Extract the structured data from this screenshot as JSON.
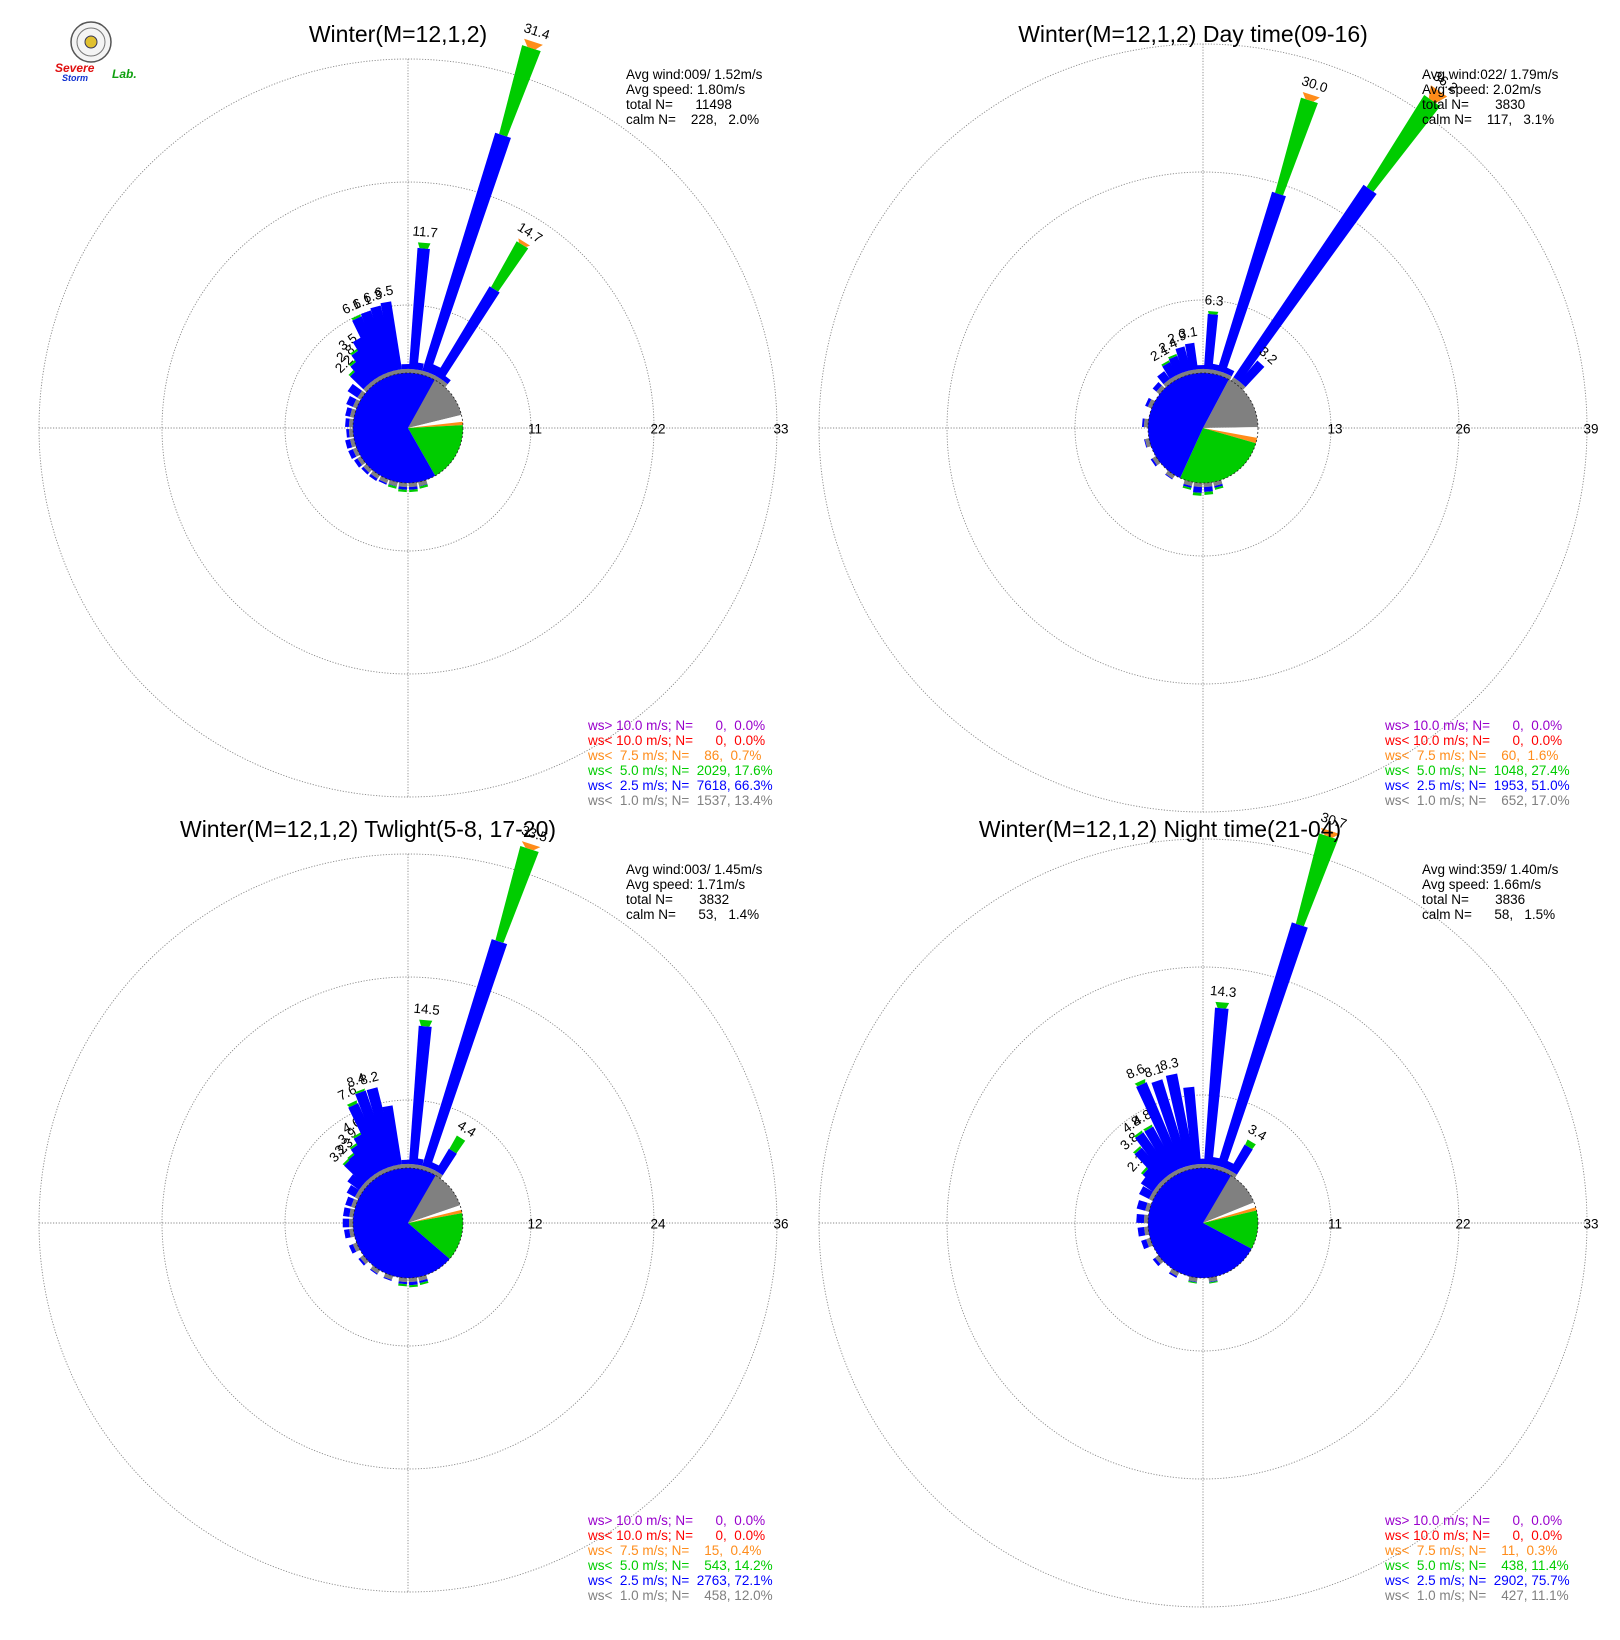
{
  "logo": {
    "line1": "Severe",
    "line2": "Storm",
    "line3": "Lab."
  },
  "colors": {
    "gt10": "#9900cc",
    "lt10": "#ff0000",
    "lt7_5": "#ff8c1a",
    "lt5": "#00cc00",
    "lt2_5": "#0000ff",
    "lt1": "#808080",
    "calm": "#ffffff",
    "grid": "#888888"
  },
  "chart_data": [
    {
      "type": "wind-rose",
      "title": "Winter(M=12,1,2)",
      "stats": [
        "Avg wind:009/ 1.52m/s",
        "Avg speed: 1.80m/s",
        "total N=      11498",
        "calm N=    228,   2.0%"
      ],
      "rings": [
        11,
        22,
        33
      ],
      "core": {
        "lt1": 13.4,
        "lt2_5": 66.3,
        "lt5": 17.6,
        "lt7_5": 0.7,
        "lt10": 0.0,
        "gt10": 0.0,
        "calm": 2.0
      },
      "bars": [
        {
          "dir": 315,
          "total": 2.2,
          "green": 0.2,
          "label": "2.2"
        },
        {
          "dir": 320,
          "total": 2.8,
          "green": 0.2,
          "label": "2.8"
        },
        {
          "dir": 325,
          "total": 3.5,
          "green": 0.2,
          "label": "3.5"
        },
        {
          "dir": 330,
          "total": 4.2,
          "green": 0,
          "label": ""
        },
        {
          "dir": 335,
          "total": 6.1,
          "green": 0.2,
          "label": "6.1"
        },
        {
          "dir": 340,
          "total": 6.1,
          "green": 0,
          "label": "6.1"
        },
        {
          "dir": 345,
          "total": 6.3,
          "green": 0,
          "label": "6.3"
        },
        {
          "dir": 350,
          "total": 6.5,
          "green": 0,
          "label": "6.5"
        },
        {
          "dir": 358,
          "total": 0.8,
          "green": 0,
          "label": ""
        },
        {
          "dir": 5,
          "total": 11.7,
          "green": 0.5,
          "label": "11.7"
        },
        {
          "dir": 10,
          "total": 1.0,
          "green": 0,
          "label": ""
        },
        {
          "dir": 18,
          "total": 31.4,
          "green": 8.2,
          "orange": 0.6,
          "label": "31.4"
        },
        {
          "dir": 25,
          "total": 1.2,
          "green": 0,
          "label": ""
        },
        {
          "dir": 32,
          "total": 14.7,
          "green": 4.7,
          "orange": 0.3,
          "label": "14.7"
        },
        {
          "dir": 38,
          "total": 0.8,
          "green": 0,
          "label": ""
        },
        {
          "dir": 165,
          "total": 0.6,
          "green": 0.2,
          "label": ""
        },
        {
          "dir": 175,
          "total": 0.8,
          "green": 0.2,
          "label": ""
        },
        {
          "dir": 185,
          "total": 0.8,
          "green": 0.2,
          "label": ""
        },
        {
          "dir": 195,
          "total": 0.6,
          "green": 0.2,
          "label": ""
        },
        {
          "dir": 205,
          "total": 0.5,
          "green": 0,
          "label": ""
        },
        {
          "dir": 215,
          "total": 0.6,
          "green": 0,
          "label": ""
        },
        {
          "dir": 225,
          "total": 0.6,
          "green": 0,
          "label": ""
        },
        {
          "dir": 235,
          "total": 0.7,
          "green": 0,
          "label": ""
        },
        {
          "dir": 245,
          "total": 0.8,
          "green": 0,
          "label": ""
        },
        {
          "dir": 255,
          "total": 0.8,
          "green": 0,
          "label": ""
        },
        {
          "dir": 265,
          "total": 0.6,
          "green": 0,
          "label": ""
        },
        {
          "dir": 275,
          "total": 0.7,
          "green": 0,
          "label": ""
        },
        {
          "dir": 285,
          "total": 0.8,
          "green": 0,
          "label": ""
        },
        {
          "dir": 295,
          "total": 1.0,
          "green": 0,
          "label": ""
        },
        {
          "dir": 305,
          "total": 1.4,
          "green": 0,
          "label": ""
        }
      ],
      "legend": [
        {
          "text": "ws> 10.0 m/s; N=      0,  0.0%",
          "key": "gt10"
        },
        {
          "text": "ws< 10.0 m/s; N=      0,  0.0%",
          "key": "lt10"
        },
        {
          "text": "ws<  7.5 m/s; N=    86,  0.7%",
          "key": "lt7_5"
        },
        {
          "text": "ws<  5.0 m/s; N=  2029, 17.6%",
          "key": "lt5"
        },
        {
          "text": "ws<  2.5 m/s; N=  7618, 66.3%",
          "key": "lt2_5"
        },
        {
          "text": "ws<  1.0 m/s; N=  1537, 13.4%",
          "key": "lt1"
        }
      ]
    },
    {
      "type": "wind-rose",
      "title": "Winter(M=12,1,2) Day time(09-16)",
      "stats": [
        "Avg wind:022/ 1.79m/s",
        "Avg speed: 2.02m/s",
        "total N=       3830",
        "calm N=    117,   3.1%"
      ],
      "rings": [
        13,
        26,
        39
      ],
      "core": {
        "lt1": 17.0,
        "lt2_5": 51.0,
        "lt5": 27.4,
        "lt7_5": 1.6,
        "lt10": 0.0,
        "gt10": 0.0,
        "calm": 3.1
      },
      "bars": [
        {
          "dir": 330,
          "total": 2.1,
          "green": 0.2,
          "label": "2.1"
        },
        {
          "dir": 337,
          "total": 2.4,
          "green": 0.2,
          "label": "2.4"
        },
        {
          "dir": 344,
          "total": 2.9,
          "green": 0,
          "label": "2.9"
        },
        {
          "dir": 351,
          "total": 3.1,
          "green": 0,
          "label": "3.1"
        },
        {
          "dir": 358,
          "total": 0.8,
          "green": 0,
          "label": ""
        },
        {
          "dir": 5,
          "total": 6.3,
          "green": 0.3,
          "label": "6.3"
        },
        {
          "dir": 12,
          "total": 1.0,
          "green": 0,
          "label": ""
        },
        {
          "dir": 18,
          "total": 30.0,
          "green": 10.0,
          "orange": 0.6,
          "label": "30.0"
        },
        {
          "dir": 25,
          "total": 1.0,
          "green": 0,
          "label": ""
        },
        {
          "dir": 35,
          "total": 36.2,
          "green": 11.0,
          "orange": 1.2,
          "label": "36.2"
        },
        {
          "dir": 42,
          "total": 3.2,
          "green": 0,
          "label": "3.2"
        },
        {
          "dir": 165,
          "total": 0.8,
          "green": 0.2,
          "label": ""
        },
        {
          "dir": 175,
          "total": 1.2,
          "green": 0.3,
          "label": ""
        },
        {
          "dir": 185,
          "total": 1.3,
          "green": 0.3,
          "label": ""
        },
        {
          "dir": 195,
          "total": 0.8,
          "green": 0.2,
          "label": ""
        },
        {
          "dir": 215,
          "total": 0.5,
          "green": 0,
          "label": ""
        },
        {
          "dir": 235,
          "total": 0.6,
          "green": 0,
          "label": ""
        },
        {
          "dir": 255,
          "total": 0.5,
          "green": 0,
          "label": ""
        },
        {
          "dir": 275,
          "total": 0.6,
          "green": 0,
          "label": ""
        },
        {
          "dir": 295,
          "total": 0.7,
          "green": 0,
          "label": ""
        },
        {
          "dir": 312,
          "total": 0.9,
          "green": 0,
          "label": ""
        },
        {
          "dir": 322,
          "total": 1.4,
          "green": 0,
          "label": ""
        }
      ],
      "legend": [
        {
          "text": "ws> 10.0 m/s; N=      0,  0.0%",
          "key": "gt10"
        },
        {
          "text": "ws< 10.0 m/s; N=      0,  0.0%",
          "key": "lt10"
        },
        {
          "text": "ws<  7.5 m/s; N=    60,  1.6%",
          "key": "lt7_5"
        },
        {
          "text": "ws<  5.0 m/s; N=  1048, 27.4%",
          "key": "lt5"
        },
        {
          "text": "ws<  2.5 m/s; N=  1953, 51.0%",
          "key": "lt2_5"
        },
        {
          "text": "ws<  1.0 m/s; N=    652, 17.0%",
          "key": "lt1"
        }
      ]
    },
    {
      "type": "wind-rose",
      "title": "Winter(M=12,1,2) Twlight(5-8, 17-20)",
      "stats": [
        "Avg wind:003/ 1.45m/s",
        "Avg speed: 1.71m/s",
        "total N=       3832",
        "calm N=      53,   1.4%"
      ],
      "rings": [
        12,
        24,
        36
      ],
      "core": {
        "lt1": 12.0,
        "lt2_5": 72.1,
        "lt5": 14.2,
        "lt7_5": 0.4,
        "lt10": 0.0,
        "gt10": 0.0,
        "calm": 1.4
      },
      "bars": [
        {
          "dir": 315,
          "total": 3.2,
          "green": 0.2,
          "label": "3.2"
        },
        {
          "dir": 320,
          "total": 3.3,
          "green": 0.2,
          "label": "3.3"
        },
        {
          "dir": 325,
          "total": 3.9,
          "green": 0.2,
          "label": "3.9"
        },
        {
          "dir": 330,
          "total": 4.6,
          "green": 0.2,
          "label": "4.6"
        },
        {
          "dir": 335,
          "total": 7.6,
          "green": 0.3,
          "label": "7.6"
        },
        {
          "dir": 340,
          "total": 8.4,
          "green": 0.2,
          "label": "8.4"
        },
        {
          "dir": 345,
          "total": 8.2,
          "green": 0,
          "label": "8.2"
        },
        {
          "dir": 350,
          "total": 6.2,
          "green": 0,
          "label": ""
        },
        {
          "dir": 358,
          "total": 0.8,
          "green": 0,
          "label": ""
        },
        {
          "dir": 5,
          "total": 14.5,
          "green": 0.6,
          "label": "14.5"
        },
        {
          "dir": 10,
          "total": 1.0,
          "green": 0,
          "label": ""
        },
        {
          "dir": 18,
          "total": 33.5,
          "green": 9.5,
          "orange": 0.5,
          "label": "33.5"
        },
        {
          "dir": 25,
          "total": 1.0,
          "green": 0,
          "label": ""
        },
        {
          "dir": 32,
          "total": 4.4,
          "green": 1.5,
          "label": "4.4"
        },
        {
          "dir": 165,
          "total": 0.8,
          "green": 0.2,
          "label": ""
        },
        {
          "dir": 175,
          "total": 0.9,
          "green": 0.2,
          "label": ""
        },
        {
          "dir": 185,
          "total": 0.8,
          "green": 0.2,
          "label": ""
        },
        {
          "dir": 200,
          "total": 0.5,
          "green": 0,
          "label": ""
        },
        {
          "dir": 215,
          "total": 0.5,
          "green": 0,
          "label": ""
        },
        {
          "dir": 230,
          "total": 0.6,
          "green": 0,
          "label": ""
        },
        {
          "dir": 245,
          "total": 0.8,
          "green": 0,
          "label": ""
        },
        {
          "dir": 260,
          "total": 0.9,
          "green": 0,
          "label": ""
        },
        {
          "dir": 270,
          "total": 1.0,
          "green": 0,
          "label": ""
        },
        {
          "dir": 280,
          "total": 1.0,
          "green": 0,
          "label": ""
        },
        {
          "dir": 290,
          "total": 1.0,
          "green": 0,
          "label": ""
        },
        {
          "dir": 300,
          "total": 1.3,
          "green": 0,
          "label": ""
        },
        {
          "dir": 308,
          "total": 1.8,
          "green": 0,
          "label": ""
        }
      ],
      "legend": [
        {
          "text": "ws> 10.0 m/s; N=      0,  0.0%",
          "key": "gt10"
        },
        {
          "text": "ws< 10.0 m/s; N=      0,  0.0%",
          "key": "lt10"
        },
        {
          "text": "ws<  7.5 m/s; N=    15,  0.4%",
          "key": "lt7_5"
        },
        {
          "text": "ws<  5.0 m/s; N=    543, 14.2%",
          "key": "lt5"
        },
        {
          "text": "ws<  2.5 m/s; N=  2763, 72.1%",
          "key": "lt2_5"
        },
        {
          "text": "ws<  1.0 m/s; N=    458, 12.0%",
          "key": "lt1"
        }
      ]
    },
    {
      "type": "wind-rose",
      "title": "Winter(M=12,1,2) Night time(21-04)",
      "stats": [
        "Avg wind:359/ 1.40m/s",
        "Avg speed: 1.66m/s",
        "total N=       3836",
        "calm N=      58,   1.5%"
      ],
      "rings": [
        11,
        22,
        33
      ],
      "core": {
        "lt1": 11.1,
        "lt2_5": 75.7,
        "lt5": 11.4,
        "lt7_5": 0.3,
        "lt10": 0.0,
        "gt10": 0.0,
        "calm": 1.5
      },
      "bars": [
        {
          "dir": 312,
          "total": 2.1,
          "green": 0.2,
          "label": "2.1"
        },
        {
          "dir": 318,
          "total": 3.8,
          "green": 0.2,
          "label": "3.8"
        },
        {
          "dir": 324,
          "total": 4.8,
          "green": 0.2,
          "label": "4.8"
        },
        {
          "dir": 330,
          "total": 4.8,
          "green": 0.2,
          "label": "4.8"
        },
        {
          "dir": 336,
          "total": 8.6,
          "green": 0.3,
          "label": "8.6"
        },
        {
          "dir": 342,
          "total": 8.1,
          "green": 0,
          "label": "8.1"
        },
        {
          "dir": 348,
          "total": 8.3,
          "green": 0,
          "label": "8.3"
        },
        {
          "dir": 354,
          "total": 7.0,
          "green": 0,
          "label": ""
        },
        {
          "dir": 0,
          "total": 0.8,
          "green": 0,
          "label": ""
        },
        {
          "dir": 5,
          "total": 14.3,
          "green": 0.5,
          "label": "14.3"
        },
        {
          "dir": 11,
          "total": 1.0,
          "green": 0,
          "label": ""
        },
        {
          "dir": 18,
          "total": 30.7,
          "green": 8.0,
          "orange": 0.5,
          "label": "30.7"
        },
        {
          "dir": 25,
          "total": 1.0,
          "green": 0,
          "label": ""
        },
        {
          "dir": 31,
          "total": 3.4,
          "green": 0.5,
          "label": "3.4"
        },
        {
          "dir": 170,
          "total": 0.5,
          "green": 0.1,
          "label": ""
        },
        {
          "dir": 190,
          "total": 0.5,
          "green": 0.1,
          "label": ""
        },
        {
          "dir": 210,
          "total": 0.5,
          "green": 0,
          "label": ""
        },
        {
          "dir": 230,
          "total": 0.6,
          "green": 0,
          "label": ""
        },
        {
          "dir": 250,
          "total": 0.8,
          "green": 0,
          "label": ""
        },
        {
          "dir": 262,
          "total": 0.9,
          "green": 0,
          "label": ""
        },
        {
          "dir": 274,
          "total": 1.0,
          "green": 0,
          "label": ""
        },
        {
          "dir": 286,
          "total": 1.1,
          "green": 0,
          "label": ""
        },
        {
          "dir": 298,
          "total": 1.3,
          "green": 0,
          "label": ""
        },
        {
          "dir": 306,
          "total": 1.6,
          "green": 0,
          "label": ""
        }
      ],
      "legend": [
        {
          "text": "ws> 10.0 m/s; N=      0,  0.0%",
          "key": "gt10"
        },
        {
          "text": "ws< 10.0 m/s; N=      0,  0.0%",
          "key": "lt10"
        },
        {
          "text": "ws<  7.5 m/s; N=    11,  0.3%",
          "key": "lt7_5"
        },
        {
          "text": "ws<  5.0 m/s; N=    438, 11.4%",
          "key": "lt5"
        },
        {
          "text": "ws<  2.5 m/s; N=  2902, 75.7%",
          "key": "lt2_5"
        },
        {
          "text": "ws<  1.0 m/s; N=    427, 11.1%",
          "key": "lt1"
        }
      ]
    }
  ]
}
